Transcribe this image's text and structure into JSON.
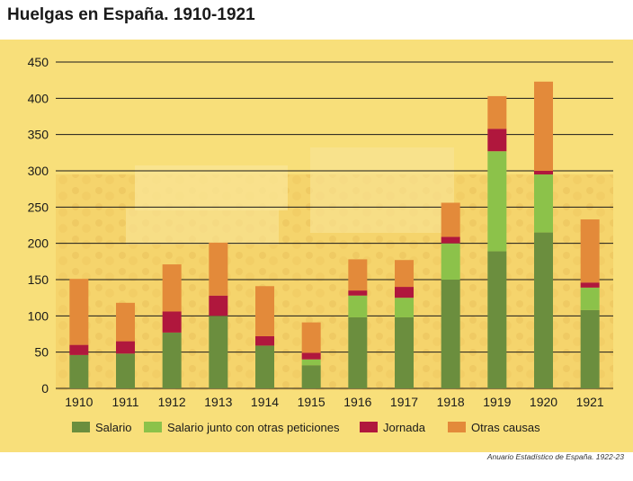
{
  "chart_data": {
    "type": "bar",
    "stacked": true,
    "title": "Huelgas en España. 1910-1921",
    "xlabel": "",
    "ylabel": "",
    "ylim": [
      0,
      450
    ],
    "yticks": [
      0,
      50,
      100,
      150,
      200,
      250,
      300,
      350,
      400,
      450
    ],
    "grid": true,
    "legend_position": "bottom",
    "categories": [
      "1910",
      "1911",
      "1912",
      "1913",
      "1914",
      "1915",
      "1916",
      "1917",
      "1918",
      "1919",
      "1920",
      "1921"
    ],
    "series": [
      {
        "name": "Salario",
        "color": "#6b8e3e",
        "values": [
          46,
          48,
          77,
          100,
          59,
          32,
          98,
          98,
          150,
          189,
          215,
          108
        ]
      },
      {
        "name": "Salario junto con otras peticiones",
        "color": "#8cc24a",
        "values": [
          0,
          0,
          0,
          0,
          0,
          8,
          30,
          27,
          50,
          138,
          80,
          31
        ]
      },
      {
        "name": "Jornada",
        "color": "#b0173d",
        "values": [
          14,
          17,
          29,
          28,
          13,
          9,
          7,
          15,
          9,
          31,
          5,
          7
        ]
      },
      {
        "name": "Otras causas",
        "color": "#e38a3a",
        "values": [
          91,
          53,
          65,
          73,
          69,
          42,
          43,
          37,
          47,
          45,
          123,
          87
        ]
      }
    ]
  },
  "source": "Anuario Estadístico de España. 1922-23"
}
